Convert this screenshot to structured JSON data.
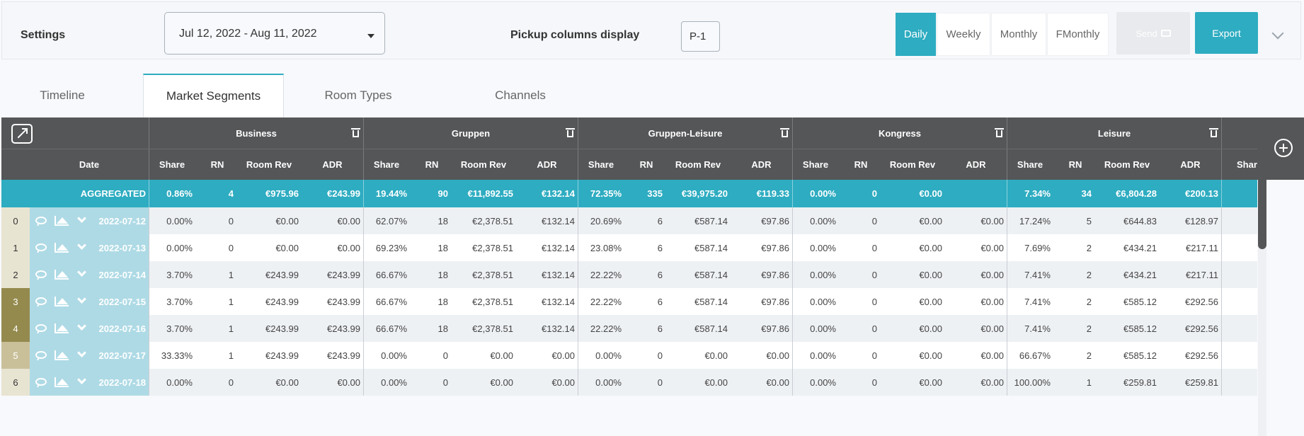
{
  "topbar": {
    "settings_label": "Settings",
    "date_range": "Jul 12, 2022 - Aug 11, 2022",
    "pickup_label": "Pickup columns display",
    "pickup_value": "P-1",
    "views": [
      "Daily",
      "Weekly",
      "Monthly",
      "FMonthly"
    ],
    "active_view": "Daily",
    "send_label": "Send",
    "export_label": "Export"
  },
  "tabs": [
    "Timeline",
    "Market Segments",
    "Room Types",
    "Channels"
  ],
  "active_tab": "Market Segments",
  "table": {
    "date_header": "Date",
    "segments": [
      "Business",
      "Gruppen",
      "Gruppen-Leisure",
      "Kongress",
      "Leisure"
    ],
    "sub_headers": [
      "Share",
      "RN",
      "Room Rev",
      "ADR"
    ],
    "extra_header": "Share",
    "aggregated": {
      "label": "AGGREGATED",
      "values": [
        [
          "0.86%",
          "4",
          "€975.96",
          "€243.99"
        ],
        [
          "19.44%",
          "90",
          "€11,892.55",
          "€132.14"
        ],
        [
          "72.35%",
          "335",
          "€39,975.20",
          "€119.33"
        ],
        [
          "0.00%",
          "0",
          "€0.00",
          ""
        ],
        [
          "7.34%",
          "34",
          "€6,804.28",
          "€200.13"
        ]
      ]
    },
    "rows": [
      {
        "idx": "0",
        "date": "2022-07-12",
        "idx_color": "#e8e4d2",
        "values": [
          [
            "0.00%",
            "0",
            "€0.00",
            "€0.00"
          ],
          [
            "62.07%",
            "18",
            "€2,378.51",
            "€132.14"
          ],
          [
            "20.69%",
            "6",
            "€587.14",
            "€97.86"
          ],
          [
            "0.00%",
            "0",
            "€0.00",
            "€0.00"
          ],
          [
            "17.24%",
            "5",
            "€644.83",
            "€128.97"
          ]
        ]
      },
      {
        "idx": "1",
        "date": "2022-07-13",
        "idx_color": "#e8e4d2",
        "values": [
          [
            "0.00%",
            "0",
            "€0.00",
            "€0.00"
          ],
          [
            "69.23%",
            "18",
            "€2,378.51",
            "€132.14"
          ],
          [
            "23.08%",
            "6",
            "€587.14",
            "€97.86"
          ],
          [
            "0.00%",
            "0",
            "€0.00",
            "€0.00"
          ],
          [
            "7.69%",
            "2",
            "€434.21",
            "€217.11"
          ]
        ]
      },
      {
        "idx": "2",
        "date": "2022-07-14",
        "idx_color": "#e8e4d2",
        "values": [
          [
            "3.70%",
            "1",
            "€243.99",
            "€243.99"
          ],
          [
            "66.67%",
            "18",
            "€2,378.51",
            "€132.14"
          ],
          [
            "22.22%",
            "6",
            "€587.14",
            "€97.86"
          ],
          [
            "0.00%",
            "0",
            "€0.00",
            "€0.00"
          ],
          [
            "7.41%",
            "2",
            "€434.21",
            "€217.11"
          ]
        ]
      },
      {
        "idx": "3",
        "date": "2022-07-15",
        "idx_color": "#948a4e",
        "values": [
          [
            "3.70%",
            "1",
            "€243.99",
            "€243.99"
          ],
          [
            "66.67%",
            "18",
            "€2,378.51",
            "€132.14"
          ],
          [
            "22.22%",
            "6",
            "€587.14",
            "€97.86"
          ],
          [
            "0.00%",
            "0",
            "€0.00",
            "€0.00"
          ],
          [
            "7.41%",
            "2",
            "€585.12",
            "€292.56"
          ]
        ]
      },
      {
        "idx": "4",
        "date": "2022-07-16",
        "idx_color": "#948a4e",
        "values": [
          [
            "3.70%",
            "1",
            "€243.99",
            "€243.99"
          ],
          [
            "66.67%",
            "18",
            "€2,378.51",
            "€132.14"
          ],
          [
            "22.22%",
            "6",
            "€587.14",
            "€97.86"
          ],
          [
            "0.00%",
            "0",
            "€0.00",
            "€0.00"
          ],
          [
            "7.41%",
            "2",
            "€585.12",
            "€292.56"
          ]
        ]
      },
      {
        "idx": "5",
        "date": "2022-07-17",
        "idx_color": "#c9c09a",
        "values": [
          [
            "33.33%",
            "1",
            "€243.99",
            "€243.99"
          ],
          [
            "0.00%",
            "0",
            "€0.00",
            "€0.00"
          ],
          [
            "0.00%",
            "0",
            "€0.00",
            "€0.00"
          ],
          [
            "0.00%",
            "0",
            "€0.00",
            "€0.00"
          ],
          [
            "66.67%",
            "2",
            "€585.12",
            "€292.56"
          ]
        ]
      },
      {
        "idx": "6",
        "date": "2022-07-18",
        "idx_color": "#e8e4d2",
        "values": [
          [
            "0.00%",
            "0",
            "€0.00",
            "€0.00"
          ],
          [
            "0.00%",
            "0",
            "€0.00",
            "€0.00"
          ],
          [
            "0.00%",
            "0",
            "€0.00",
            "€0.00"
          ],
          [
            "0.00%",
            "0",
            "€0.00",
            "€0.00"
          ],
          [
            "100.00%",
            "1",
            "€259.81",
            "€259.81"
          ]
        ]
      }
    ]
  }
}
